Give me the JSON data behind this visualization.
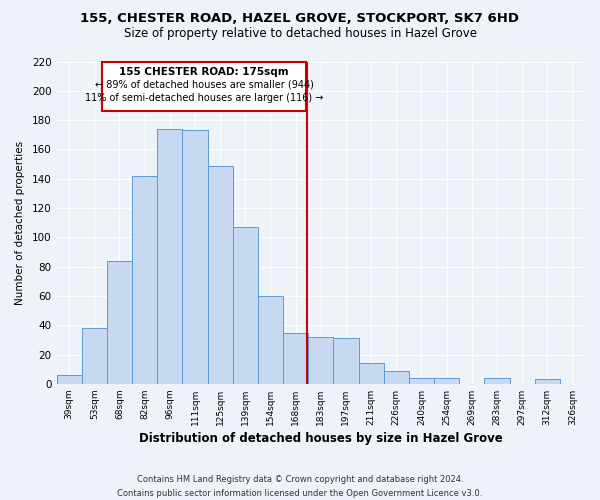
{
  "title": "155, CHESTER ROAD, HAZEL GROVE, STOCKPORT, SK7 6HD",
  "subtitle": "Size of property relative to detached houses in Hazel Grove",
  "xlabel": "Distribution of detached houses by size in Hazel Grove",
  "ylabel": "Number of detached properties",
  "bar_labels": [
    "39sqm",
    "53sqm",
    "68sqm",
    "82sqm",
    "96sqm",
    "111sqm",
    "125sqm",
    "139sqm",
    "154sqm",
    "168sqm",
    "183sqm",
    "197sqm",
    "211sqm",
    "226sqm",
    "240sqm",
    "254sqm",
    "269sqm",
    "283sqm",
    "297sqm",
    "312sqm",
    "326sqm"
  ],
  "bar_values": [
    6,
    38,
    84,
    142,
    174,
    173,
    149,
    107,
    60,
    35,
    32,
    31,
    14,
    9,
    4,
    4,
    0,
    4,
    0,
    3,
    0
  ],
  "bar_color": "#c6d9f0",
  "bar_edge_color": "#5b9bd5",
  "annotation_title": "155 CHESTER ROAD: 175sqm",
  "annotation_line1": "← 89% of detached houses are smaller (944)",
  "annotation_line2": "11% of semi-detached houses are larger (116) →",
  "ylim": [
    0,
    220
  ],
  "yticks": [
    0,
    20,
    40,
    60,
    80,
    100,
    120,
    140,
    160,
    180,
    200,
    220
  ],
  "footer_line1": "Contains HM Land Registry data © Crown copyright and database right 2024.",
  "footer_line2": "Contains public sector information licensed under the Open Government Licence v3.0.",
  "bg_color": "#eef2f9",
  "grid_color": "#ffffff",
  "ref_line_color": "#cc0000",
  "box_edge_color": "#cc0000"
}
